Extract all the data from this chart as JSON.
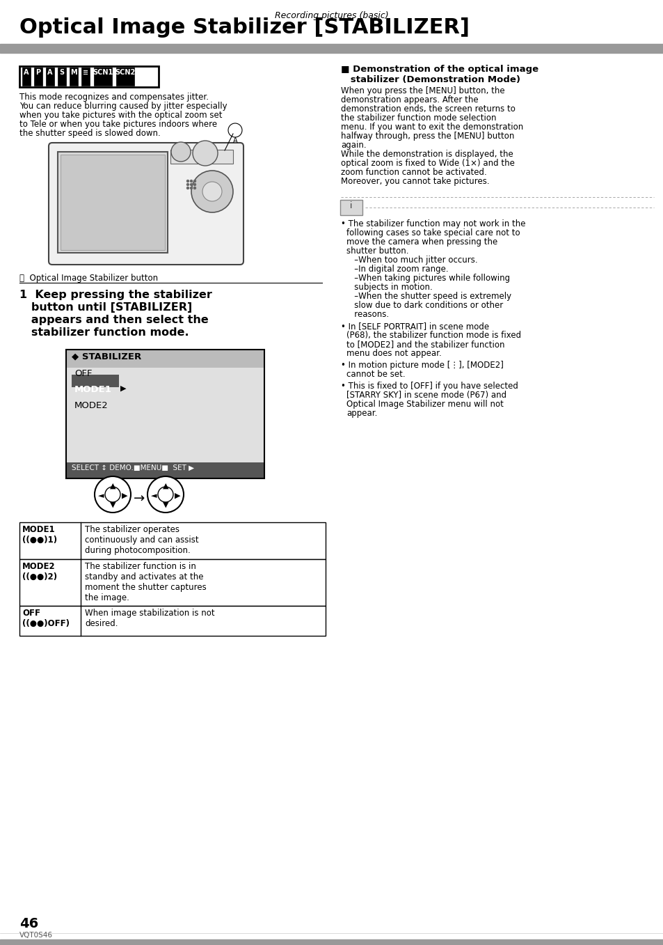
{
  "bg": "#ffffff",
  "header_italic": "Recording pictures (basic)",
  "title": "Optical Image Stabilizer [STABILIZER]",
  "left_intro": [
    "This mode recognizes and compensates jitter.",
    "You can reduce blurring caused by jitter especially",
    "when you take pictures with the optical zoom set",
    "to Tele or when you take pictures indoors where",
    "the shutter speed is slowed down."
  ],
  "camera_caption": "Ⓐ  Optical Image Stabilizer button",
  "step1": [
    "1  Keep pressing the stabilizer",
    "   button until [STABILIZER]",
    "   appears and then select the",
    "   stabilizer function mode."
  ],
  "menu_header": "STABILIZER",
  "menu_items": [
    "OFF",
    "MODE1",
    "MODE2"
  ],
  "menu_footer": "SELECT ↕ DEMO.■MENU■  SET ▶",
  "table_rows": [
    [
      "MODE1\n((●●))1)",
      "The stabilizer operates\ncontinuously and can assist\nduring photocomposition."
    ],
    [
      "MODE2\n((●●))2)",
      "The stabilizer function is in\nstandby and activates at the\nmoment the shutter captures\nthe image."
    ],
    [
      "OFF\n((●●))OFF)",
      "When image stabilization is not\ndesired."
    ]
  ],
  "demo_title_1": "■ Demonstration of the optical image",
  "demo_title_2": "   stabilizer (Demonstration Mode)",
  "demo_body": [
    "When you press the [MENU] button, the",
    "demonstration appears. After the",
    "demonstration ends, the screen returns to",
    "the stabilizer function mode selection",
    "menu. If you want to exit the demonstration",
    "halfway through, press the [MENU] button",
    "again.",
    "While the demonstration is displayed, the",
    "optical zoom is fixed to Wide (1×) and the",
    "zoom function cannot be activated.",
    "Moreover, you cannot take pictures."
  ],
  "bullets": [
    "The stabilizer function may not work in the\nfollowing cases so take special care not to\nmove the camera when pressing the\nshutter button.\n   –When too much jitter occurs.\n   –In digital zoom range.\n   –When taking pictures while following\n   subjects in motion.\n   –When the shutter speed is extremely\n   slow due to dark conditions or other\n   reasons.",
    "In [SELF PORTRAIT] in scene mode\n(P68), the stabilizer function mode is fixed\nto [MODE2] and the stabilizer function\nmenu does not appear.",
    "In motion picture mode [⋮], [MODE2]\ncannot be set.",
    "This is fixed to [OFF] if you have selected\n[STARRY SKY] in scene mode (P67) and\nOptical Image Stabilizer menu will not\nappear."
  ],
  "page_num": "46",
  "page_code": "VQT0S46"
}
